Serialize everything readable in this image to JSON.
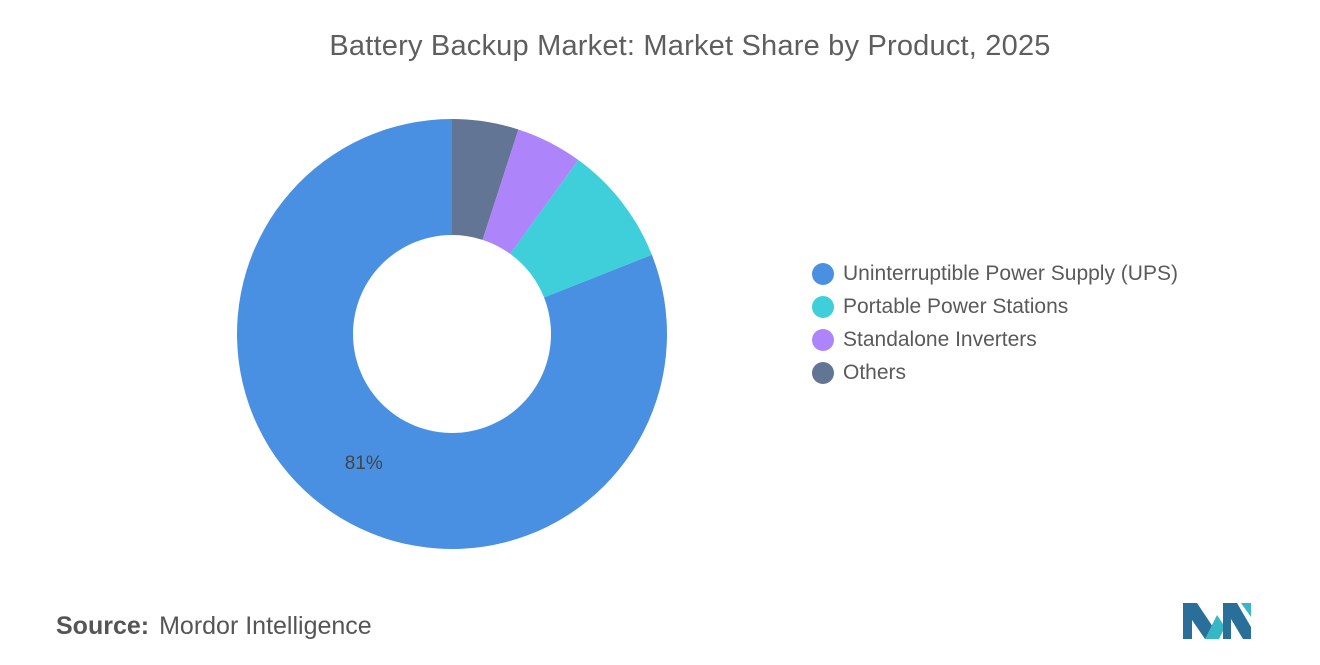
{
  "chart_data": {
    "type": "pie",
    "title": "Battery Backup Market: Market Share by Product, 2025",
    "donut": true,
    "slices": [
      {
        "label": "Uninterruptible Power Supply (UPS)",
        "value": 81,
        "color": "#4a90e2",
        "data_label": "81%"
      },
      {
        "label": "Portable Power Stations",
        "value": 9,
        "color": "#3ecfdb",
        "data_label": ""
      },
      {
        "label": "Standalone Inverters",
        "value": 5,
        "color": "#ae84fb",
        "data_label": ""
      },
      {
        "label": "Others",
        "value": 5,
        "color": "#637595",
        "data_label": ""
      }
    ],
    "legend_placement": "right"
  },
  "source": {
    "label": "Source:",
    "value": "Mordor Intelligence"
  },
  "logo": {
    "icon": "mordor-intelligence-logo-icon",
    "colors": [
      "#2a6f9a",
      "#37b6c6"
    ]
  }
}
